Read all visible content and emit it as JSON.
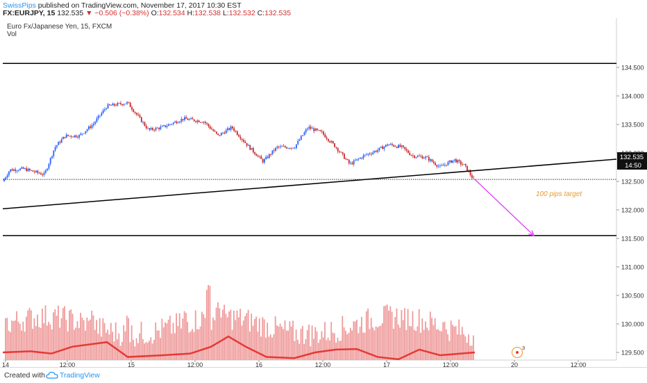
{
  "header": {
    "author": "SwissPips",
    "published": "published on TradingView.com, November 17, 2017 10:30 EST",
    "symbol": "FX:EURJPY, 15",
    "last": "132.535",
    "change": "▼ −0.506 (−0.38%)",
    "o_label": "O:",
    "o_value": "132.534",
    "h_label": "H:",
    "h_value": "132.538",
    "l_label": "L:",
    "l_value": "132.532",
    "c_label": "C:",
    "c_value": "132.535"
  },
  "legend": {
    "title": "Euro Fx/Japanese Yen, 15, FXCM",
    "vol": "Vol"
  },
  "annotation": {
    "text": "100 pips target",
    "color": "#e69a2e"
  },
  "price_label": {
    "value": "132.535",
    "time": "14:50"
  },
  "event_badge": "3",
  "footer": {
    "created": "Created with",
    "brand": "TradingView"
  },
  "colors": {
    "up": "#2962ff",
    "down": "#c62828",
    "volume": "#ef9a9a",
    "volume_ma": "#e53935",
    "arrow": "#e040fb",
    "accent": "#2196f3"
  },
  "chart_data": {
    "type": "candlestick",
    "symbol": "EURJPY",
    "interval": "15",
    "y_ticks": [
      "134.500",
      "134.000",
      "133.500",
      "133.000",
      "132.500",
      "132.000",
      "131.500",
      "131.000",
      "130.500",
      "130.000",
      "129.500"
    ],
    "ylim": [
      129.1,
      134.75
    ],
    "x_ticks": [
      "14",
      "12:00",
      "15",
      "12:00",
      "16",
      "12:00",
      "17",
      "12:00",
      "20",
      "12:00"
    ],
    "price_points": [
      [
        0,
        132.5
      ],
      [
        10,
        132.7
      ],
      [
        30,
        132.72
      ],
      [
        60,
        132.62
      ],
      [
        75,
        133.1
      ],
      [
        90,
        133.3
      ],
      [
        110,
        133.3
      ],
      [
        130,
        133.5
      ],
      [
        150,
        133.82
      ],
      [
        180,
        133.88
      ],
      [
        210,
        133.4
      ],
      [
        230,
        133.45
      ],
      [
        260,
        133.6
      ],
      [
        290,
        133.55
      ],
      [
        310,
        133.3
      ],
      [
        330,
        133.45
      ],
      [
        355,
        133.1
      ],
      [
        375,
        132.85
      ],
      [
        395,
        133.1
      ],
      [
        420,
        133.1
      ],
      [
        440,
        133.45
      ],
      [
        460,
        133.35
      ],
      [
        480,
        133.1
      ],
      [
        500,
        132.8
      ],
      [
        520,
        132.95
      ],
      [
        540,
        133.05
      ],
      [
        555,
        133.15
      ],
      [
        575,
        133.1
      ],
      [
        590,
        132.95
      ],
      [
        610,
        132.92
      ],
      [
        630,
        132.75
      ],
      [
        650,
        132.88
      ],
      [
        665,
        132.78
      ],
      [
        680,
        132.5
      ]
    ],
    "price_range": [
      132.45,
      133.9
    ],
    "lines": [
      {
        "name": "resistance",
        "x": [
          0,
          888
        ],
        "y": [
          134.57,
          134.57
        ]
      },
      {
        "name": "trendline",
        "x": [
          0,
          888
        ],
        "y": [
          132.02,
          132.89
        ]
      },
      {
        "name": "support",
        "x": [
          0,
          888
        ],
        "y": [
          131.55,
          131.55
        ]
      },
      {
        "name": "current-price",
        "x": [
          0,
          888
        ],
        "y": [
          132.535,
          132.535
        ]
      }
    ],
    "target_arrow": {
      "from": [
        680,
        132.535
      ],
      "to": [
        765,
        131.55
      ]
    },
    "volume_ma_points": [
      [
        0,
        129.5
      ],
      [
        40,
        129.52
      ],
      [
        70,
        129.48
      ],
      [
        100,
        129.6
      ],
      [
        150,
        129.68
      ],
      [
        180,
        129.42
      ],
      [
        230,
        129.45
      ],
      [
        270,
        129.48
      ],
      [
        300,
        129.6
      ],
      [
        325,
        129.78
      ],
      [
        350,
        129.6
      ],
      [
        380,
        129.42
      ],
      [
        420,
        129.4
      ],
      [
        450,
        129.5
      ],
      [
        480,
        129.55
      ],
      [
        510,
        129.56
      ],
      [
        540,
        129.42
      ],
      [
        570,
        129.38
      ],
      [
        600,
        129.55
      ],
      [
        630,
        129.45
      ],
      [
        660,
        129.48
      ],
      [
        680,
        129.5
      ]
    ]
  }
}
